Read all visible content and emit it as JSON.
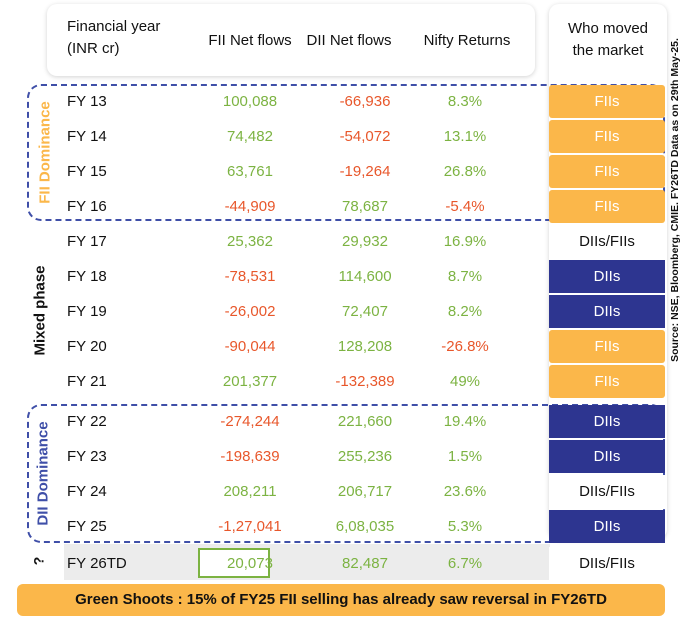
{
  "chart_data": {
    "type": "table",
    "headers": {
      "year": [
        "Financial year",
        "(INR cr)"
      ],
      "fii": "FII Net flows",
      "dii": "DII Net flows",
      "nifty": "Nifty Returns",
      "who": [
        "Who moved",
        "the market"
      ]
    },
    "groups": [
      {
        "label": "FII Dominance",
        "color": "#fbb74a"
      },
      {
        "label": "Mixed phase",
        "color": "#111111"
      },
      {
        "label": "DII Dominance",
        "color": "#3f4fa8"
      },
      {
        "label": "?",
        "color": "#111111"
      }
    ],
    "rows": [
      {
        "year": "FY 13",
        "fii": "100,088",
        "dii": "-66,936",
        "nifty": "8.3%",
        "who": "FIIs",
        "who_type": "fii",
        "signs": [
          "pos",
          "neg",
          "pos"
        ]
      },
      {
        "year": "FY 14",
        "fii": "74,482",
        "dii": "-54,072",
        "nifty": "13.1%",
        "who": "FIIs",
        "who_type": "fii",
        "signs": [
          "pos",
          "neg",
          "pos"
        ]
      },
      {
        "year": "FY 15",
        "fii": "63,761",
        "dii": "-19,264",
        "nifty": "26.8%",
        "who": "FIIs",
        "who_type": "fii",
        "signs": [
          "pos",
          "neg",
          "pos"
        ]
      },
      {
        "year": "FY 16",
        "fii": "-44,909",
        "dii": "78,687",
        "nifty": "-5.4%",
        "who": "FIIs",
        "who_type": "fii",
        "signs": [
          "neg",
          "pos",
          "neg"
        ]
      },
      {
        "year": "FY 17",
        "fii": "25,362",
        "dii": "29,932",
        "nifty": "16.9%",
        "who": "DIIs/FIIs",
        "who_type": "mixed",
        "signs": [
          "pos",
          "pos",
          "pos"
        ]
      },
      {
        "year": "FY 18",
        "fii": "-78,531",
        "dii": "114,600",
        "nifty": "8.7%",
        "who": "DIIs",
        "who_type": "dii",
        "signs": [
          "neg",
          "pos",
          "pos"
        ]
      },
      {
        "year": "FY 19",
        "fii": "-26,002",
        "dii": "72,407",
        "nifty": "8.2%",
        "who": "DIIs",
        "who_type": "dii",
        "signs": [
          "neg",
          "pos",
          "pos"
        ]
      },
      {
        "year": "FY 20",
        "fii": "-90,044",
        "dii": "128,208",
        "nifty": "-26.8%",
        "who": "FIIs",
        "who_type": "fii",
        "signs": [
          "neg",
          "pos",
          "neg"
        ]
      },
      {
        "year": "FY 21",
        "fii": "201,377",
        "dii": "-132,389",
        "nifty": "49%",
        "who": "FIIs",
        "who_type": "fii",
        "signs": [
          "pos",
          "neg",
          "pos"
        ]
      },
      {
        "year": "FY 22",
        "fii": "-274,244",
        "dii": "221,660",
        "nifty": "19.4%",
        "who": "DIIs",
        "who_type": "dii",
        "signs": [
          "neg",
          "pos",
          "pos"
        ]
      },
      {
        "year": "FY 23",
        "fii": "-198,639",
        "dii": "255,236",
        "nifty": "1.5%",
        "who": "DIIs",
        "who_type": "dii",
        "signs": [
          "neg",
          "pos",
          "pos"
        ]
      },
      {
        "year": "FY 24",
        "fii": "208,211",
        "dii": "206,717",
        "nifty": "23.6%",
        "who": "DIIs/FIIs",
        "who_type": "mixed",
        "signs": [
          "pos",
          "pos",
          "pos"
        ]
      },
      {
        "year": "FY 25",
        "fii": "-1,27,041",
        "dii": "6,08,035",
        "nifty": "5.3%",
        "who": "DIIs",
        "who_type": "dii",
        "signs": [
          "neg",
          "pos",
          "pos"
        ]
      },
      {
        "year": "FY 26TD",
        "fii": "20,073",
        "dii": "82,487",
        "nifty": "6.7%",
        "who": "DIIs/FIIs",
        "who_type": "mixed",
        "signs": [
          "pos",
          "pos",
          "pos"
        ]
      }
    ],
    "footer": "Green Shoots : 15% of FY25 FII selling has already saw reversal in FY26TD",
    "source": "Source: NSE, Bloomberg, CMIE. FY26TD Data as on 29th May-25."
  },
  "colors": {
    "positive": "#7cb342",
    "negative": "#e8572b",
    "fii_accent": "#fbb74a",
    "dii_accent": "#2d3590",
    "dash_border": "#3f4fa8"
  }
}
